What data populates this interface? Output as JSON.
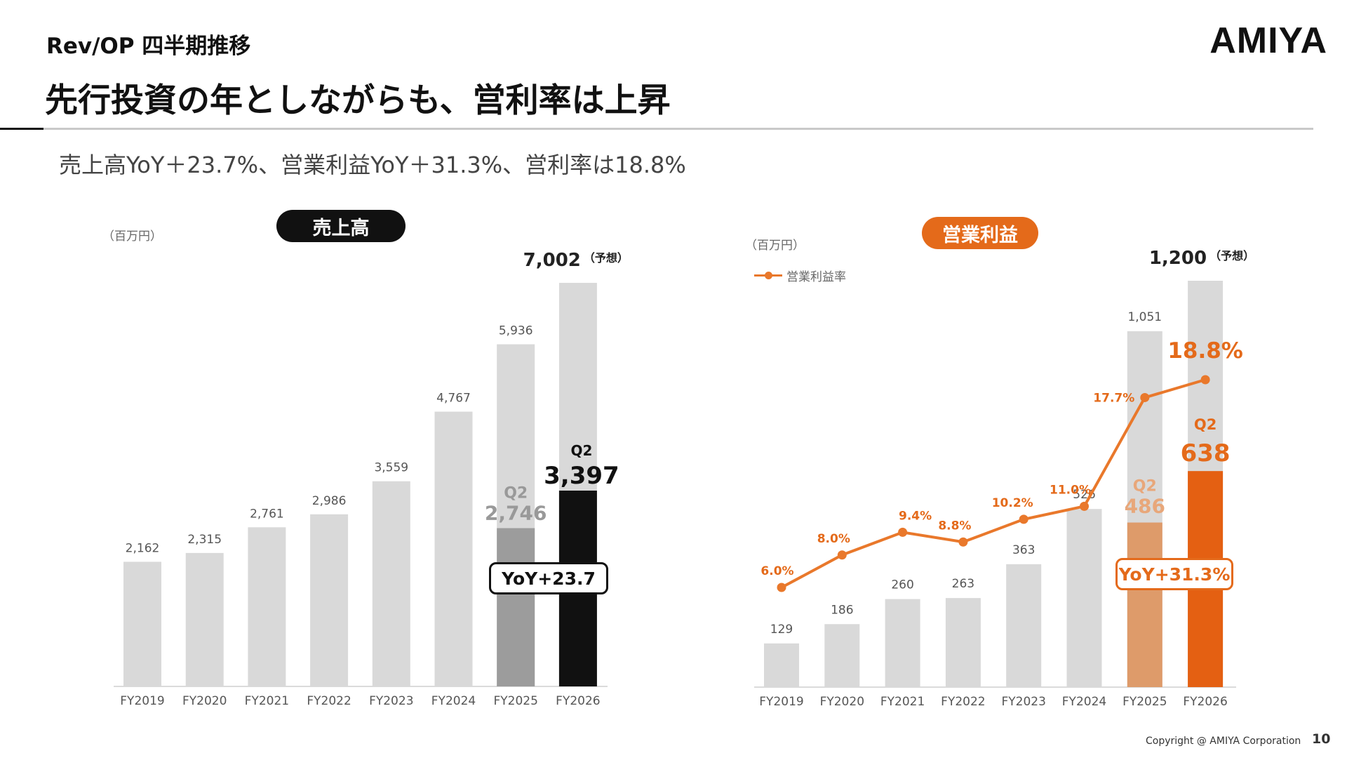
{
  "header": {
    "section_label": "Rev/OP 四半期推移",
    "logo_text": "AMIYA",
    "headline": "先行投資の年としながらも、営利率は上昇",
    "summary": "売上高YoY＋23.7%、営業利益YoY＋31.3%、営利率は18.8%"
  },
  "footer": {
    "copyright": "Copyright @ AMIYA Corporation",
    "page_number": "10"
  },
  "colors": {
    "bar_gray": "#d9d9d9",
    "rev_q2_prev": "#9c9c9c",
    "rev_q2_current": "#111111",
    "op_q2_prev": "#de9b6a",
    "op_q2_current": "#e46012",
    "op_line": "#e9782b",
    "op_label": "#e46a1a"
  },
  "chart_data": [
    {
      "type": "bar",
      "title": "売上高",
      "unit_label": "（百万円）",
      "categories": [
        "FY2019",
        "FY2020",
        "FY2021",
        "FY2022",
        "FY2023",
        "FY2024",
        "FY2025",
        "FY2026"
      ],
      "values": [
        2162,
        2315,
        2761,
        2986,
        3559,
        4767,
        5936,
        7002
      ],
      "value_labels": [
        "2,162",
        "2,315",
        "2,761",
        "2,986",
        "3,559",
        "4,767",
        "5,936",
        "7,002"
      ],
      "forecast_note": "（予想）",
      "q2_series": [
        {
          "category": "FY2025",
          "tag": "Q2",
          "value": 2746,
          "label": "2,746"
        },
        {
          "category": "FY2026",
          "tag": "Q2",
          "value": 3397,
          "label": "3,397"
        }
      ],
      "yoy_label": "YoY+23.7",
      "ylim": [
        0,
        7500
      ]
    },
    {
      "type": "bar",
      "title": "営業利益",
      "unit_label": "（百万円）",
      "categories": [
        "FY2019",
        "FY2020",
        "FY2021",
        "FY2022",
        "FY2023",
        "FY2024",
        "FY2025",
        "FY2026"
      ],
      "values": [
        129,
        186,
        260,
        263,
        363,
        526,
        1051,
        1200
      ],
      "value_labels": [
        "129",
        "186",
        "260",
        "263",
        "363",
        "526",
        "1,051",
        "1,200"
      ],
      "forecast_note": "（予想）",
      "q2_series": [
        {
          "category": "FY2025",
          "tag": "Q2",
          "value": 486,
          "label": "486"
        },
        {
          "category": "FY2026",
          "tag": "Q2",
          "value": 638,
          "label": "638"
        }
      ],
      "margin_series": {
        "name": "営業利益率",
        "values": [
          6.0,
          8.0,
          9.4,
          8.8,
          10.2,
          11.0,
          17.7,
          18.8
        ],
        "labels": [
          "6.0%",
          "8.0%",
          "9.4%",
          "8.8%",
          "10.2%",
          "11.0%",
          "17.7%",
          "18.8%"
        ]
      },
      "yoy_label": "YoY+31.3%",
      "ylim": [
        0,
        1300
      ]
    }
  ]
}
